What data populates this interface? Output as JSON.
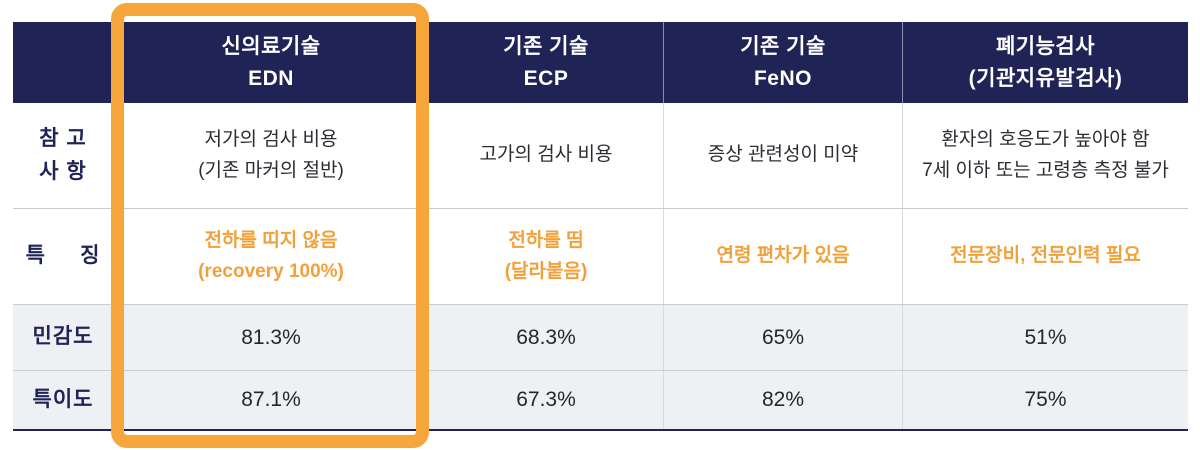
{
  "colors": {
    "navy": "#1F2355",
    "orange": "#F2A03A",
    "highlight": "#F7A63B",
    "stripe": "#EEF0F4",
    "grid_line": "#D7D9DF",
    "row_line": "#C9CCD3",
    "body_text": "#2B2D33",
    "header_text": "#FFFFFF"
  },
  "header": {
    "corner": "",
    "cols": [
      "신의료기술\nEDN",
      "기존 기술\nECP",
      "기존 기술\nFeNO",
      "폐기능검사\n(기관지유발검사)"
    ]
  },
  "rows": [
    {
      "label": "참 고\n사 항",
      "cells": [
        "저가의 검사 비용\n(기존 마커의 절반)",
        "고가의 검사 비용",
        "증상 관련성이 미약",
        "환자의 호응도가 높아야 함\n7세 이하 또는 고령층 측정 불가"
      ]
    },
    {
      "label": "특     징",
      "cells": [
        "전하를 띠지 않음\n(recovery 100%)",
        "전하를 띰\n(달라붙음)",
        "연령 편차가 있음",
        "전문장비, 전문인력 필요"
      ]
    },
    {
      "label": "민감도",
      "cells": [
        "81.3%",
        "68.3%",
        "65%",
        "51%"
      ]
    },
    {
      "label": "특이도",
      "cells": [
        "87.1%",
        "67.3%",
        "82%",
        "75%"
      ]
    }
  ],
  "chart_data": {
    "type": "table",
    "title": "",
    "columns": [
      "신의료기술 EDN",
      "기존 기술 ECP",
      "기존 기술 FeNO",
      "폐기능검사 (기관지유발검사)"
    ],
    "row_headers": [
      "참고사항",
      "특징",
      "민감도",
      "특이도"
    ],
    "cells": [
      [
        "저가의 검사 비용 (기존 마커의 절반)",
        "고가의 검사 비용",
        "증상 관련성이 미약",
        "환자의 호응도가 높아야 함, 7세 이하 또는 고령층 측정 불가"
      ],
      [
        "전하를 띠지 않음 (recovery 100%)",
        "전하를 띰 (달라붙음)",
        "연령 편차가 있음",
        "전문장비, 전문인력 필요"
      ],
      [
        "81.3%",
        "68.3%",
        "65%",
        "51%"
      ],
      [
        "87.1%",
        "67.3%",
        "82%",
        "75%"
      ]
    ],
    "series": [
      {
        "name": "민감도 (%)",
        "values": [
          81.3,
          68.3,
          65,
          51
        ]
      },
      {
        "name": "특이도 (%)",
        "values": [
          87.1,
          67.3,
          82,
          75
        ]
      }
    ],
    "highlighted_column": "신의료기술 EDN",
    "legend_position": "none",
    "grid": true
  }
}
